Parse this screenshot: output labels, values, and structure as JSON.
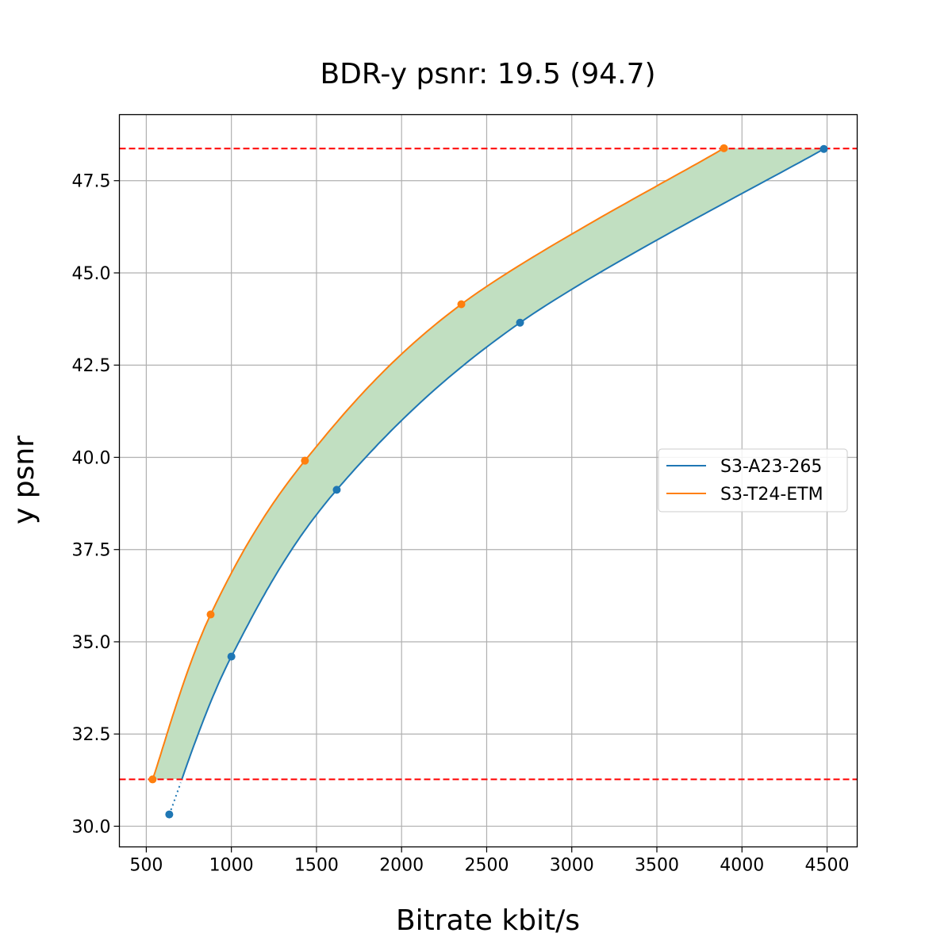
{
  "chart_data": {
    "type": "line",
    "title": "BDR-y psnr: 19.5 (94.7)",
    "xlabel": "Bitrate kbit/s",
    "ylabel": "y psnr",
    "xlim": [
      342,
      4677
    ],
    "ylim": [
      29.44,
      49.29
    ],
    "xticks": [
      500,
      1000,
      1500,
      2000,
      2500,
      3000,
      3500,
      4000,
      4500
    ],
    "yticks": [
      30.0,
      32.5,
      35.0,
      37.5,
      40.0,
      42.5,
      45.0,
      47.5
    ],
    "xtick_labels": [
      "500",
      "1000",
      "1500",
      "2000",
      "2500",
      "3000",
      "3500",
      "4000",
      "4500"
    ],
    "ytick_labels": [
      "30.0",
      "32.5",
      "35.0",
      "37.5",
      "40.0",
      "42.5",
      "45.0",
      "47.5"
    ],
    "grid": true,
    "legend_position": "center-right",
    "series": [
      {
        "name": "S3-A23-265",
        "color": "#1f77b4",
        "x": [
          635,
          1000,
          1619,
          2696,
          4481
        ],
        "y": [
          30.32,
          34.6,
          39.12,
          43.65,
          48.36
        ]
      },
      {
        "name": "S3-T24-ETM",
        "color": "#ff7f0e",
        "x": [
          537,
          878,
          1432,
          2351,
          3894
        ],
        "y": [
          31.27,
          35.74,
          39.91,
          44.15,
          48.38
        ]
      }
    ],
    "hlines": [
      {
        "y": 31.27,
        "color": "#ff0000",
        "style": "dashed"
      },
      {
        "y": 48.37,
        "color": "#ff0000",
        "style": "dashed"
      }
    ],
    "fill_between": {
      "color": "#c1dfc1",
      "y_range": [
        31.27,
        48.37
      ]
    }
  }
}
